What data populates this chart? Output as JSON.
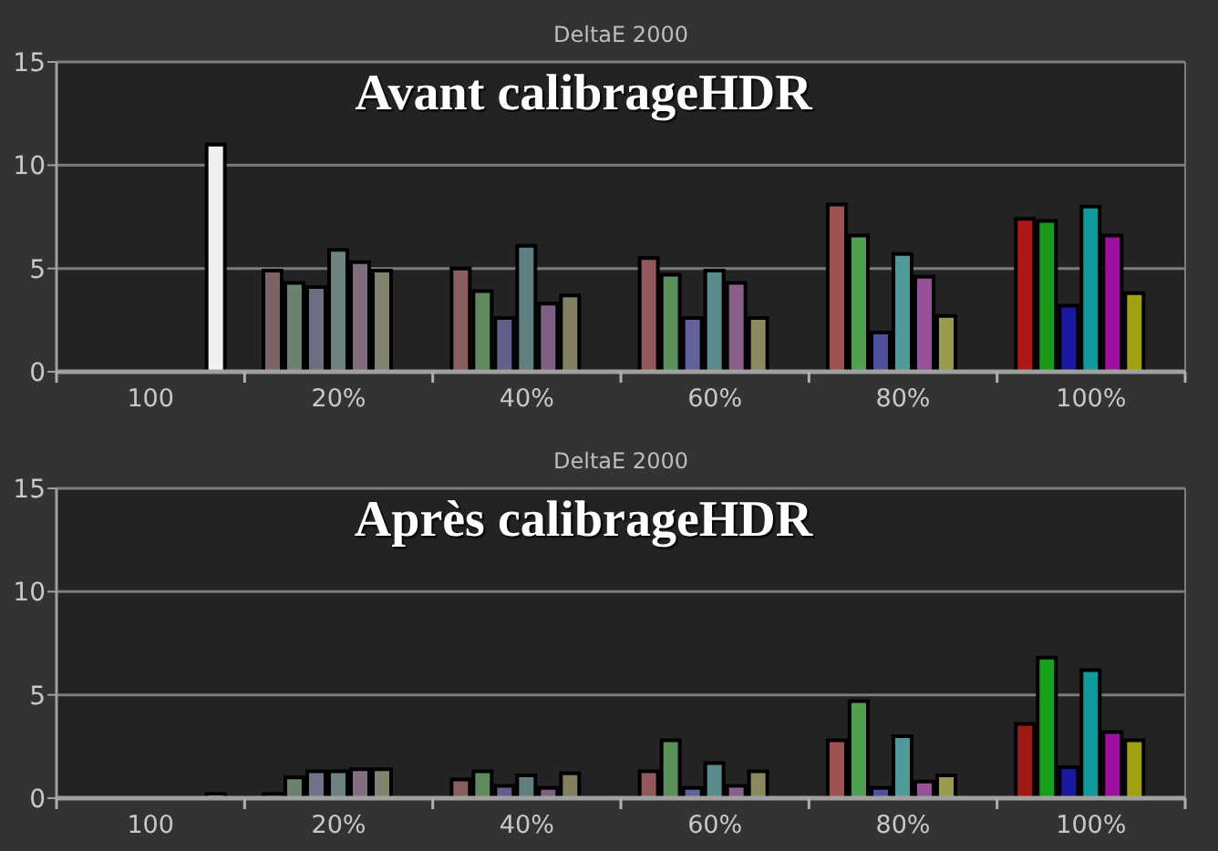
{
  "chart_data": [
    {
      "type": "bar",
      "title": "DeltaE 2000",
      "subtitle": "Avant calibrageHDR",
      "categories": [
        "100",
        "20%",
        "40%",
        "60%",
        "80%",
        "100%"
      ],
      "series": [
        {
          "colors": [
            null,
            "#7a6464",
            "#8a5e5e",
            "#905a5a",
            "#a05050",
            "#b01818"
          ],
          "values": [
            null,
            4.9,
            5.0,
            5.5,
            8.1,
            7.4
          ]
        },
        {
          "colors": [
            null,
            "#6e806e",
            "#5e8a5e",
            "#5a905a",
            "#50a050",
            "#189a18"
          ],
          "values": [
            null,
            4.3,
            3.9,
            4.7,
            6.6,
            7.3
          ]
        },
        {
          "colors": [
            null,
            "#6e6e82",
            "#60608a",
            "#62629a",
            "#5050a0",
            "#1818a0"
          ],
          "values": [
            null,
            4.1,
            2.6,
            2.6,
            1.9,
            3.2
          ]
        },
        {
          "colors": [
            null,
            "#6e8282",
            "#5e8080",
            "#5a8a8a",
            "#509a9a",
            "#109a9a"
          ],
          "values": [
            null,
            5.9,
            6.1,
            4.9,
            5.7,
            8.0
          ]
        },
        {
          "colors": [
            null,
            "#806e80",
            "#806080",
            "#8a608a",
            "#985098",
            "#a010a0"
          ],
          "values": [
            null,
            5.3,
            3.3,
            4.3,
            4.6,
            6.6
          ]
        },
        {
          "colors": [
            null,
            "#82826e",
            "#80805e",
            "#8a8a60",
            "#9a9a50",
            "#a0a010"
          ],
          "values": [
            null,
            4.9,
            3.7,
            2.6,
            2.7,
            3.8
          ]
        },
        {
          "color": "#f0f0f0",
          "values": [
            11.0,
            null,
            null,
            null,
            null,
            null
          ]
        }
      ],
      "ylim": [
        0,
        15
      ],
      "yticks": [
        0,
        5,
        10,
        15
      ],
      "grid": "y",
      "legend": false
    },
    {
      "type": "bar",
      "title": "DeltaE 2000",
      "subtitle": "Après calibrageHDR",
      "categories": [
        "100",
        "20%",
        "40%",
        "60%",
        "80%",
        "100%"
      ],
      "series": [
        {
          "colors": [
            null,
            "#7a6a6a",
            "#8a5e5e",
            "#905a5a",
            "#a05050",
            "#a01818"
          ],
          "values": [
            null,
            0.2,
            0.9,
            1.3,
            2.8,
            3.6
          ]
        },
        {
          "colors": [
            null,
            "#6e806e",
            "#5e8a5e",
            "#5a905a",
            "#50a050",
            "#18a018"
          ],
          "values": [
            null,
            1.0,
            1.3,
            2.8,
            4.7,
            6.8
          ]
        },
        {
          "colors": [
            null,
            "#72728a",
            "#60608a",
            "#62629a",
            "#5050a0",
            "#1818a0"
          ],
          "values": [
            null,
            1.3,
            0.6,
            0.5,
            0.5,
            1.5
          ]
        },
        {
          "colors": [
            null,
            "#6e8282",
            "#5e8080",
            "#5a8a8a",
            "#509a9a",
            "#109a9a"
          ],
          "values": [
            null,
            1.3,
            1.1,
            1.7,
            3.0,
            6.2
          ]
        },
        {
          "colors": [
            null,
            "#846e84",
            "#806080",
            "#8a608a",
            "#985098",
            "#a010a0"
          ],
          "values": [
            null,
            1.4,
            0.5,
            0.6,
            0.8,
            3.2
          ]
        },
        {
          "colors": [
            null,
            "#82826e",
            "#80805e",
            "#8a8a60",
            "#9a9a50",
            "#a0a010"
          ],
          "values": [
            null,
            1.4,
            1.2,
            1.3,
            1.1,
            2.8
          ]
        },
        {
          "color": "#f0f0f0",
          "values": [
            0.2,
            null,
            null,
            null,
            null,
            null
          ]
        }
      ],
      "ylim": [
        0,
        15
      ],
      "yticks": [
        0,
        5,
        10,
        15
      ],
      "grid": "y",
      "legend": false
    }
  ]
}
